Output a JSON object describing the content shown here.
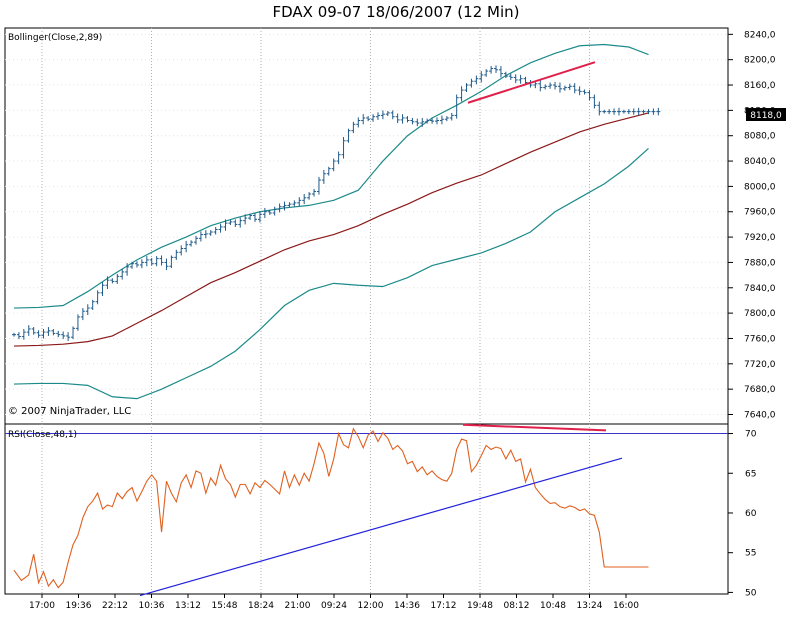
{
  "title": "FDAX 09-07  18/06/2007  (12 Min)",
  "copyright": "© 2007 NinjaTrader, LLC",
  "colors": {
    "price_bars": "#1f5a8a",
    "bollinger_outer": "#1d8a8a",
    "bollinger_middle": "#8b1a1a",
    "rsi_line": "#e06020",
    "rsi_level": "#3333cc",
    "trend_blue": "#2222dd",
    "divergence_red": "#e0204a",
    "grid": "#b0b0b0"
  },
  "chart_data": [
    {
      "type": "line",
      "panel": "price",
      "indicator_label": "Bollinger(Close,2,89)",
      "x_tick_labels": [
        "17:00",
        "19:36",
        "22:12",
        "10:36",
        "13:12",
        "15:48",
        "18:24",
        "21:00",
        "09:24",
        "12:00",
        "14:36",
        "17:12",
        "19:48",
        "08:12",
        "10:48",
        "13:24",
        "16:00"
      ],
      "y_tick_labels": [
        "8240,0",
        "8200,0",
        "8160,0",
        "8120,0",
        "8080,0",
        "8040,0",
        "8000,0",
        "7960,0",
        "7920,0",
        "7880,0",
        "7840,0",
        "7800,0",
        "7760,0",
        "7720,0",
        "7680,0",
        "7640,0"
      ],
      "ylim": [
        7625,
        8250
      ],
      "last_price_label": "8118,0",
      "grid": true,
      "series": [
        {
          "role": "close",
          "style": "ohlc",
          "x": [
            0,
            2,
            4,
            6,
            8,
            10,
            12,
            14,
            16,
            18,
            20,
            22,
            24,
            26,
            28,
            30,
            32,
            34,
            36,
            38,
            40,
            42,
            44,
            46,
            48,
            50,
            52,
            54,
            56,
            58,
            60,
            62,
            64,
            66,
            68,
            70,
            72,
            74,
            76,
            78,
            80,
            82,
            84,
            86,
            88,
            90,
            92,
            94,
            96,
            98,
            100,
            102,
            104,
            106,
            108,
            110,
            112,
            114,
            116,
            118,
            120,
            122,
            124,
            126,
            128,
            130,
            132,
            134,
            136,
            138,
            140,
            142,
            144,
            146,
            148,
            150,
            152,
            154,
            156,
            158,
            160,
            162,
            164,
            166,
            168,
            170,
            172,
            174,
            176,
            178,
            180,
            182,
            184,
            186,
            188,
            190,
            192,
            194,
            196,
            198,
            200,
            202,
            204,
            206,
            208,
            210,
            212,
            214,
            216,
            218,
            220,
            222,
            224,
            226,
            228,
            230,
            232,
            234,
            236,
            238,
            240,
            242,
            244,
            246,
            248,
            250,
            252,
            254,
            256,
            258,
            260,
            262,
            264,
            266,
            268,
            270
          ],
          "values": [
            7766,
            7763,
            7770,
            7775,
            7769,
            7765,
            7770,
            7772,
            7768,
            7766,
            7764,
            7762,
            7776,
            7794,
            7803,
            7808,
            7818,
            7832,
            7844,
            7852,
            7850,
            7858,
            7865,
            7873,
            7878,
            7876,
            7880,
            7884,
            7878,
            7886,
            7880,
            7874,
            7888,
            7896,
            7902,
            7908,
            7912,
            7918,
            7924,
            7925,
            7928,
            7932,
            7936,
            7942,
            7944,
            7940,
            7946,
            7950,
            7954,
            7948,
            7956,
            7960,
            7958,
            7964,
            7968,
            7970,
            7972,
            7974,
            7978,
            7982,
            7988,
            7992,
            8010,
            8020,
            8028,
            8040,
            8050,
            8072,
            8088,
            8098,
            8104,
            8108,
            8106,
            8110,
            8112,
            8114,
            8116,
            8110,
            8105,
            8108,
            8104,
            8102,
            8100,
            8102,
            8104,
            8103,
            8104,
            8106,
            8108,
            8112,
            8140,
            8152,
            8160,
            8166,
            8170,
            8176,
            8182,
            8186,
            8184,
            8178,
            8174,
            8172,
            8168,
            8170,
            8164,
            8160,
            8162,
            8156,
            8158,
            8160,
            8158,
            8154,
            8156,
            8158,
            8152,
            8150,
            8148,
            8140,
            8128,
            8118,
            8118,
            8118,
            8118,
            8118,
            8118,
            8118,
            8118,
            8118,
            8118,
            8118,
            8118,
            8118,
            8118,
            8118,
            8118,
            8118
          ]
        },
        {
          "role": "upper_band",
          "x": [
            0,
            10,
            20,
            30,
            40,
            50,
            60,
            70,
            80,
            90,
            100,
            110,
            120,
            130,
            140,
            150,
            160,
            170,
            180,
            190,
            200,
            210,
            220,
            230,
            240,
            250,
            258
          ],
          "values": [
            7808,
            7809,
            7812,
            7834,
            7860,
            7884,
            7904,
            7920,
            7938,
            7950,
            7960,
            7966,
            7970,
            7978,
            7994,
            8040,
            8080,
            8108,
            8128,
            8150,
            8175,
            8195,
            8210,
            8222,
            8224,
            8220,
            8208
          ]
        },
        {
          "role": "middle_band",
          "x": [
            0,
            10,
            20,
            30,
            40,
            50,
            60,
            70,
            80,
            90,
            100,
            110,
            120,
            130,
            140,
            150,
            160,
            170,
            180,
            190,
            200,
            210,
            220,
            230,
            240,
            250,
            258
          ],
          "values": [
            7748,
            7749,
            7751,
            7755,
            7764,
            7784,
            7804,
            7826,
            7848,
            7864,
            7882,
            7900,
            7914,
            7924,
            7938,
            7956,
            7972,
            7990,
            8005,
            8018,
            8036,
            8054,
            8070,
            8086,
            8098,
            8108,
            8116
          ]
        },
        {
          "role": "lower_band",
          "x": [
            0,
            10,
            20,
            30,
            40,
            50,
            60,
            70,
            80,
            90,
            100,
            110,
            120,
            130,
            140,
            150,
            160,
            170,
            180,
            190,
            200,
            210,
            220,
            230,
            240,
            250,
            258
          ],
          "values": [
            7688,
            7689,
            7689,
            7686,
            7668,
            7665,
            7680,
            7698,
            7716,
            7740,
            7774,
            7812,
            7836,
            7847,
            7844,
            7842,
            7856,
            7875,
            7885,
            7895,
            7910,
            7928,
            7960,
            7982,
            8004,
            8032,
            8060
          ]
        }
      ]
    },
    {
      "type": "line",
      "panel": "rsi",
      "indicator_label": "RSI(Close,48,1)",
      "y_tick_labels": [
        "70",
        "65",
        "60",
        "55",
        "50"
      ],
      "ylim": [
        49.8,
        71.2
      ],
      "grid": true,
      "series": [
        {
          "role": "rsi",
          "x": [
            0,
            3,
            6,
            8,
            10,
            12,
            14,
            16,
            18,
            20,
            22,
            24,
            26,
            28,
            30,
            32,
            34,
            36,
            38,
            40,
            42,
            44,
            46,
            48,
            50,
            52,
            54,
            56,
            58,
            60,
            62,
            64,
            66,
            68,
            70,
            72,
            74,
            76,
            78,
            80,
            82,
            84,
            86,
            88,
            90,
            92,
            94,
            96,
            98,
            100,
            102,
            104,
            106,
            108,
            110,
            112,
            114,
            116,
            118,
            120,
            122,
            124,
            126,
            128,
            130,
            132,
            134,
            136,
            138,
            140,
            142,
            144,
            146,
            148,
            150,
            152,
            154,
            156,
            158,
            160,
            162,
            164,
            166,
            168,
            170,
            172,
            174,
            176,
            178,
            180,
            182,
            184,
            186,
            188,
            190,
            192,
            194,
            196,
            198,
            200,
            202,
            204,
            206,
            208,
            210,
            212,
            214,
            216,
            218,
            220,
            222,
            224,
            226,
            228,
            230,
            232,
            234,
            236,
            238,
            240,
            242,
            244,
            246,
            248,
            250,
            252,
            254,
            256,
            258
          ],
          "values": [
            52.8,
            51.5,
            52.2,
            54.8,
            51.2,
            52.6,
            50.8,
            51.6,
            50.6,
            51.3,
            53.8,
            56,
            57.2,
            59.4,
            60.8,
            61.5,
            62.5,
            60.5,
            61,
            60.8,
            62.5,
            61.8,
            62.7,
            63.2,
            61.5,
            62.7,
            64,
            64.8,
            64,
            57.6,
            64,
            62.5,
            61.4,
            63.8,
            64.8,
            63.2,
            65.3,
            65,
            62.5,
            64.4,
            63.5,
            66,
            64.3,
            63.6,
            62,
            63.6,
            63.6,
            62.4,
            63.8,
            63.2,
            64.1,
            63.6,
            63,
            62.4,
            65.3,
            63.2,
            64.8,
            63.5,
            65,
            64,
            66.2,
            68.8,
            67.5,
            64.6,
            66.8,
            70,
            68.6,
            68.2,
            70.6,
            69.6,
            68.2,
            69.8,
            70.3,
            69,
            70.1,
            69.4,
            68,
            68.5,
            67.8,
            66.2,
            66.5,
            65.2,
            65.8,
            64.8,
            65.3,
            64.6,
            64.2,
            64,
            65,
            68,
            69.3,
            69.1,
            65.2,
            66,
            67.2,
            68.5,
            68,
            68.3,
            68.1,
            66.8,
            67.9,
            66.5,
            66.8,
            63.9,
            65.5,
            63.2,
            62.4,
            61.7,
            61.2,
            61.3,
            60.8,
            60.6,
            60.9,
            60.7,
            60.3,
            60.5,
            59.9,
            59.7,
            57.6,
            53.2,
            53.2,
            53.2,
            53.2,
            53.2,
            53.2,
            53.2,
            53.2,
            53.2,
            53.2
          ]
        },
        {
          "role": "level_70",
          "x": [
            0,
            258
          ],
          "values": [
            70,
            70
          ]
        }
      ]
    }
  ]
}
